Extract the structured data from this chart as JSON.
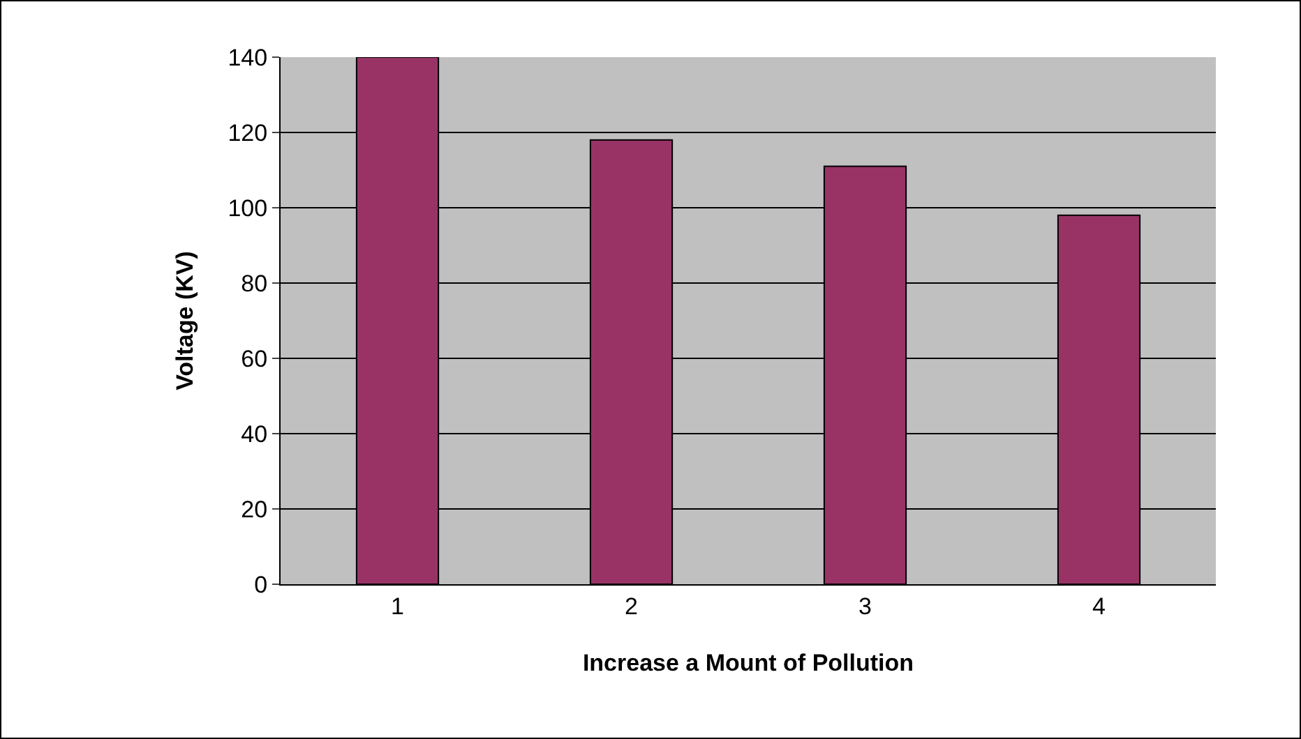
{
  "chart_data": {
    "type": "bar",
    "xlabel": "Increase a Mount of Pollution",
    "ylabel": "Voltage (KV)",
    "categories": [
      "1",
      "2",
      "3",
      "4"
    ],
    "values": [
      140,
      118,
      111,
      98
    ],
    "color": "#993366",
    "ylim": [
      0,
      140
    ],
    "yticks": [
      0,
      20,
      40,
      60,
      80,
      100,
      120,
      140
    ],
    "grid": "y"
  }
}
